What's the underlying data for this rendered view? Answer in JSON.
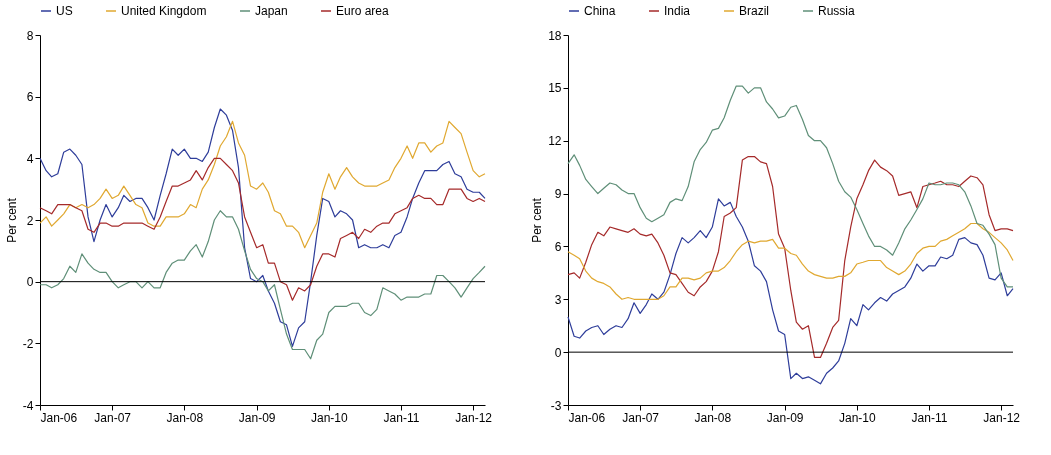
{
  "chart_data": [
    {
      "type": "line",
      "ylabel": "Per cent",
      "legend": "top",
      "grid": false,
      "x": [
        "2006-01",
        "2006-02",
        "2006-03",
        "2006-04",
        "2006-05",
        "2006-06",
        "2006-07",
        "2006-08",
        "2006-09",
        "2006-10",
        "2006-11",
        "2006-12",
        "2007-01",
        "2007-02",
        "2007-03",
        "2007-04",
        "2007-05",
        "2007-06",
        "2007-07",
        "2007-08",
        "2007-09",
        "2007-10",
        "2007-11",
        "2007-12",
        "2008-01",
        "2008-02",
        "2008-03",
        "2008-04",
        "2008-05",
        "2008-06",
        "2008-07",
        "2008-08",
        "2008-09",
        "2008-10",
        "2008-11",
        "2008-12",
        "2009-01",
        "2009-02",
        "2009-03",
        "2009-04",
        "2009-05",
        "2009-06",
        "2009-07",
        "2009-08",
        "2009-09",
        "2009-10",
        "2009-11",
        "2009-12",
        "2010-01",
        "2010-02",
        "2010-03",
        "2010-04",
        "2010-05",
        "2010-06",
        "2010-07",
        "2010-08",
        "2010-09",
        "2010-10",
        "2010-11",
        "2010-12",
        "2011-01",
        "2011-02",
        "2011-03",
        "2011-04",
        "2011-05",
        "2011-06",
        "2011-07",
        "2011-08",
        "2011-09",
        "2011-10",
        "2011-11",
        "2011-12",
        "2012-01",
        "2012-02",
        "2012-03"
      ],
      "xlim": [
        "2006-01",
        "2012-03"
      ],
      "xticks": [
        {
          "value": "2006-01",
          "label": "Jan-06"
        },
        {
          "value": "2007-01",
          "label": "Jan-07"
        },
        {
          "value": "2008-01",
          "label": "Jan-08"
        },
        {
          "value": "2009-01",
          "label": "Jan-09"
        },
        {
          "value": "2010-01",
          "label": "Jan-10"
        },
        {
          "value": "2011-01",
          "label": "Jan-11"
        },
        {
          "value": "2012-01",
          "label": "Jan-12"
        }
      ],
      "ylim": [
        -4,
        8
      ],
      "yticks": [
        -4,
        -2,
        0,
        2,
        4,
        6,
        8
      ],
      "ref_lines": [
        {
          "axis": "y",
          "value": 0,
          "color": "#000000"
        }
      ],
      "series": [
        {
          "name": "US",
          "color": "#2e3d9a",
          "values": [
            4.0,
            3.6,
            3.4,
            3.5,
            4.2,
            4.3,
            4.1,
            3.8,
            2.1,
            1.3,
            2.0,
            2.5,
            2.1,
            2.4,
            2.8,
            2.6,
            2.7,
            2.7,
            2.4,
            2.0,
            2.8,
            3.5,
            4.3,
            4.1,
            4.3,
            4.0,
            4.0,
            3.9,
            4.2,
            5.0,
            5.6,
            5.4,
            4.9,
            3.7,
            1.1,
            0.1,
            0.0,
            0.2,
            -0.3,
            -0.7,
            -1.3,
            -1.4,
            -2.1,
            -1.5,
            -1.3,
            0.0,
            1.5,
            2.7,
            2.6,
            2.1,
            2.3,
            2.2,
            2.0,
            1.1,
            1.2,
            1.1,
            1.1,
            1.2,
            1.1,
            1.5,
            1.6,
            2.1,
            2.7,
            3.2,
            3.6,
            3.6,
            3.6,
            3.8,
            3.9,
            3.5,
            3.4,
            3.0,
            2.9,
            2.9,
            2.7
          ]
        },
        {
          "name": "United Kingdom",
          "color": "#e0a830",
          "values": [
            1.9,
            2.1,
            1.8,
            2.0,
            2.2,
            2.5,
            2.4,
            2.5,
            2.4,
            2.5,
            2.7,
            3.0,
            2.7,
            2.8,
            3.1,
            2.8,
            2.5,
            2.4,
            1.9,
            1.8,
            1.8,
            2.1,
            2.1,
            2.1,
            2.2,
            2.5,
            2.4,
            3.0,
            3.3,
            3.8,
            4.4,
            4.7,
            5.2,
            4.5,
            4.1,
            3.1,
            3.0,
            3.2,
            2.9,
            2.3,
            2.2,
            1.8,
            1.8,
            1.6,
            1.1,
            1.5,
            1.9,
            2.9,
            3.5,
            3.0,
            3.4,
            3.7,
            3.4,
            3.2,
            3.1,
            3.1,
            3.1,
            3.2,
            3.3,
            3.7,
            4.0,
            4.4,
            4.0,
            4.5,
            4.5,
            4.2,
            4.4,
            4.5,
            5.2,
            5.0,
            4.8,
            4.2,
            3.6,
            3.4,
            3.5
          ]
        },
        {
          "name": "Japan",
          "color": "#5f8f78",
          "values": [
            -0.1,
            -0.1,
            -0.2,
            -0.1,
            0.1,
            0.5,
            0.3,
            0.9,
            0.6,
            0.4,
            0.3,
            0.3,
            0.0,
            -0.2,
            -0.1,
            0.0,
            0.0,
            -0.2,
            0.0,
            -0.2,
            -0.2,
            0.3,
            0.6,
            0.7,
            0.7,
            1.0,
            1.2,
            0.8,
            1.3,
            2.0,
            2.3,
            2.1,
            2.1,
            1.7,
            1.0,
            0.4,
            0.1,
            0.0,
            -0.3,
            -0.1,
            -0.9,
            -1.7,
            -2.2,
            -2.2,
            -2.2,
            -2.5,
            -1.9,
            -1.7,
            -1.0,
            -0.8,
            -0.8,
            -0.8,
            -0.7,
            -0.7,
            -1.0,
            -1.1,
            -0.9,
            -0.2,
            -0.3,
            -0.4,
            -0.6,
            -0.5,
            -0.5,
            -0.5,
            -0.4,
            -0.4,
            0.2,
            0.2,
            0.0,
            -0.2,
            -0.5,
            -0.2,
            0.1,
            0.3,
            0.5
          ]
        },
        {
          "name": "Euro area",
          "color": "#a52a2a",
          "values": [
            2.4,
            2.3,
            2.2,
            2.5,
            2.5,
            2.5,
            2.4,
            2.3,
            1.7,
            1.6,
            1.9,
            1.9,
            1.8,
            1.8,
            1.9,
            1.9,
            1.9,
            1.9,
            1.8,
            1.7,
            2.1,
            2.6,
            3.1,
            3.1,
            3.2,
            3.3,
            3.6,
            3.3,
            3.7,
            4.0,
            4.0,
            3.8,
            3.6,
            3.2,
            2.1,
            1.6,
            1.1,
            1.2,
            0.6,
            0.6,
            0.0,
            -0.1,
            -0.6,
            -0.2,
            -0.3,
            -0.1,
            0.5,
            0.9,
            0.9,
            0.8,
            1.4,
            1.5,
            1.6,
            1.4,
            1.7,
            1.6,
            1.8,
            1.9,
            1.9,
            2.2,
            2.3,
            2.4,
            2.7,
            2.8,
            2.7,
            2.7,
            2.5,
            2.5,
            3.0,
            3.0,
            3.0,
            2.7,
            2.6,
            2.7,
            2.6
          ]
        }
      ]
    },
    {
      "type": "line",
      "ylabel": "Per cent",
      "legend": "top",
      "grid": false,
      "x": [
        "2006-01",
        "2006-02",
        "2006-03",
        "2006-04",
        "2006-05",
        "2006-06",
        "2006-07",
        "2006-08",
        "2006-09",
        "2006-10",
        "2006-11",
        "2006-12",
        "2007-01",
        "2007-02",
        "2007-03",
        "2007-04",
        "2007-05",
        "2007-06",
        "2007-07",
        "2007-08",
        "2007-09",
        "2007-10",
        "2007-11",
        "2007-12",
        "2008-01",
        "2008-02",
        "2008-03",
        "2008-04",
        "2008-05",
        "2008-06",
        "2008-07",
        "2008-08",
        "2008-09",
        "2008-10",
        "2008-11",
        "2008-12",
        "2009-01",
        "2009-02",
        "2009-03",
        "2009-04",
        "2009-05",
        "2009-06",
        "2009-07",
        "2009-08",
        "2009-09",
        "2009-10",
        "2009-11",
        "2009-12",
        "2010-01",
        "2010-02",
        "2010-03",
        "2010-04",
        "2010-05",
        "2010-06",
        "2010-07",
        "2010-08",
        "2010-09",
        "2010-10",
        "2010-11",
        "2010-12",
        "2011-01",
        "2011-02",
        "2011-03",
        "2011-04",
        "2011-05",
        "2011-06",
        "2011-07",
        "2011-08",
        "2011-09",
        "2011-10",
        "2011-11",
        "2011-12",
        "2012-01",
        "2012-02",
        "2012-03"
      ],
      "xlim": [
        "2006-01",
        "2012-03"
      ],
      "xticks": [
        {
          "value": "2006-01",
          "label": "Jan-06"
        },
        {
          "value": "2007-01",
          "label": "Jan-07"
        },
        {
          "value": "2008-01",
          "label": "Jan-08"
        },
        {
          "value": "2009-01",
          "label": "Jan-09"
        },
        {
          "value": "2010-01",
          "label": "Jan-10"
        },
        {
          "value": "2011-01",
          "label": "Jan-11"
        },
        {
          "value": "2012-01",
          "label": "Jan-12"
        }
      ],
      "ylim": [
        -3,
        18
      ],
      "yticks": [
        -3,
        0,
        3,
        6,
        9,
        12,
        15,
        18
      ],
      "ref_lines": [
        {
          "axis": "y",
          "value": 0,
          "color": "#000000"
        }
      ],
      "series": [
        {
          "name": "China",
          "color": "#2e3d9a",
          "values": [
            2.0,
            0.9,
            0.8,
            1.2,
            1.4,
            1.5,
            1.0,
            1.3,
            1.5,
            1.4,
            1.9,
            2.8,
            2.2,
            2.7,
            3.3,
            3.0,
            3.4,
            4.4,
            5.6,
            6.5,
            6.2,
            6.5,
            6.9,
            6.5,
            7.1,
            8.7,
            8.3,
            8.5,
            7.7,
            7.1,
            6.3,
            4.9,
            4.6,
            4.0,
            2.4,
            1.2,
            1.0,
            -1.5,
            -1.2,
            -1.5,
            -1.4,
            -1.6,
            -1.8,
            -1.2,
            -0.9,
            -0.5,
            0.5,
            1.9,
            1.5,
            2.7,
            2.4,
            2.8,
            3.1,
            2.9,
            3.3,
            3.5,
            3.7,
            4.2,
            5.0,
            4.6,
            4.9,
            4.9,
            5.4,
            5.3,
            5.5,
            6.4,
            6.5,
            6.2,
            6.1,
            5.5,
            4.2,
            4.1,
            4.5,
            3.2,
            3.6
          ]
        },
        {
          "name": "India",
          "color": "#a52a2a",
          "values": [
            4.4,
            4.5,
            4.2,
            5.1,
            6.1,
            6.8,
            6.6,
            7.1,
            7.0,
            6.9,
            6.8,
            7.0,
            6.7,
            6.6,
            6.7,
            6.2,
            5.5,
            4.5,
            4.4,
            3.9,
            3.4,
            3.2,
            3.7,
            4.0,
            4.6,
            5.7,
            7.7,
            7.9,
            8.2,
            10.9,
            11.1,
            11.1,
            10.8,
            10.7,
            9.4,
            6.7,
            5.9,
            3.5,
            1.7,
            1.3,
            1.5,
            -0.3,
            -0.3,
            0.5,
            1.4,
            1.8,
            5.2,
            7.1,
            8.7,
            9.5,
            10.3,
            10.9,
            10.5,
            10.3,
            10.0,
            8.9,
            9.0,
            9.1,
            8.2,
            9.4,
            9.5,
            9.6,
            9.7,
            9.5,
            9.5,
            9.4,
            9.7,
            10.0,
            9.9,
            9.5,
            7.8,
            6.9,
            7.0,
            7.0,
            6.9
          ]
        },
        {
          "name": "Brazil",
          "color": "#e0a830",
          "values": [
            5.7,
            5.5,
            5.3,
            4.6,
            4.2,
            4.0,
            3.9,
            3.7,
            3.3,
            3.0,
            3.1,
            3.0,
            3.0,
            3.0,
            3.0,
            3.0,
            3.2,
            3.7,
            3.7,
            4.2,
            4.2,
            4.1,
            4.2,
            4.5,
            4.6,
            4.6,
            4.8,
            5.2,
            5.7,
            6.1,
            6.3,
            6.2,
            6.3,
            6.3,
            6.4,
            5.9,
            5.9,
            5.6,
            5.5,
            5.0,
            4.6,
            4.4,
            4.3,
            4.2,
            4.2,
            4.3,
            4.3,
            4.5,
            5.0,
            5.1,
            5.2,
            5.2,
            5.2,
            4.8,
            4.6,
            4.4,
            4.6,
            5.0,
            5.6,
            5.9,
            6.0,
            6.0,
            6.3,
            6.4,
            6.6,
            6.8,
            7.0,
            7.3,
            7.3,
            7.0,
            6.8,
            6.5,
            6.2,
            5.8,
            5.2
          ]
        },
        {
          "name": "Russia",
          "color": "#5f8f78",
          "values": [
            10.7,
            11.2,
            10.6,
            9.8,
            9.4,
            9.0,
            9.3,
            9.6,
            9.5,
            9.2,
            9.0,
            9.0,
            8.2,
            7.6,
            7.4,
            7.6,
            7.8,
            8.5,
            8.7,
            8.6,
            9.4,
            10.8,
            11.5,
            11.9,
            12.6,
            12.7,
            13.3,
            14.3,
            15.1,
            15.1,
            14.7,
            15.0,
            15.0,
            14.2,
            13.8,
            13.3,
            13.4,
            13.9,
            14.0,
            13.2,
            12.3,
            12.0,
            12.0,
            11.6,
            10.7,
            9.7,
            9.1,
            8.8,
            8.1,
            7.3,
            6.6,
            6.0,
            6.0,
            5.8,
            5.5,
            6.2,
            7.0,
            7.5,
            8.1,
            8.7,
            9.6,
            9.5,
            9.5,
            9.6,
            9.6,
            9.5,
            9.1,
            8.3,
            7.3,
            7.2,
            6.7,
            6.1,
            4.2,
            3.7,
            3.7
          ]
        }
      ]
    }
  ]
}
